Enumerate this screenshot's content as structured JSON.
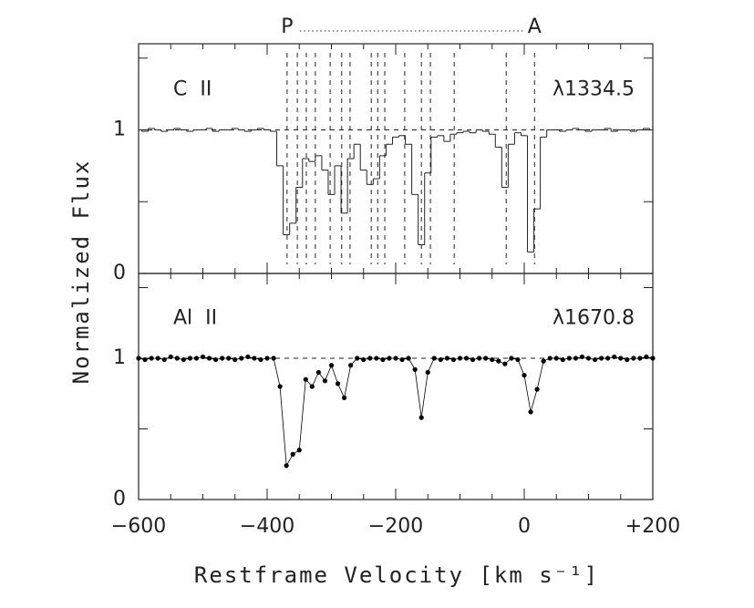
{
  "figure": {
    "xlabel": "Restframe Velocity [km s⁻¹]",
    "ylabel": "Normalized Flux",
    "start_label": "P",
    "end_label": "A",
    "xlim": [
      -600,
      200
    ],
    "xticks": [
      {
        "value": -600,
        "label": "−600"
      },
      {
        "value": -400,
        "label": "−400"
      },
      {
        "value": -200,
        "label": "−200"
      },
      0,
      {
        "value": 200,
        "label": "+200"
      }
    ],
    "xminorticks": [
      -550,
      -500,
      -450,
      -350,
      -300,
      -250,
      -150,
      -100,
      -50,
      50,
      100,
      150
    ]
  },
  "chart_data": [
    {
      "type": "step",
      "ion": "C  II",
      "line": "λ1334.5",
      "color": "#444444",
      "ylim": [
        0,
        1.6
      ],
      "yticks": [
        0,
        1
      ],
      "yminorticks": [
        0.5,
        1.5
      ],
      "continuum": 1,
      "components": [
        -369,
        -353,
        -339,
        -325,
        -302,
        -284,
        -271,
        -238,
        -228,
        -217,
        -186,
        -160,
        -146,
        -109,
        -28,
        16
      ],
      "x": [
        -600,
        -590,
        -580,
        -570,
        -560,
        -550,
        -540,
        -530,
        -520,
        -510,
        -500,
        -490,
        -480,
        -470,
        -460,
        -450,
        -440,
        -430,
        -420,
        -410,
        -400,
        -390,
        -380,
        -370,
        -360,
        -350,
        -340,
        -330,
        -320,
        -310,
        -300,
        -290,
        -280,
        -270,
        -260,
        -250,
        -240,
        -230,
        -220,
        -210,
        -200,
        -190,
        -180,
        -170,
        -160,
        -150,
        -140,
        -130,
        -120,
        -110,
        -100,
        -90,
        -80,
        -70,
        -60,
        -50,
        -40,
        -30,
        -20,
        -10,
        0,
        10,
        20,
        30,
        40,
        50,
        60,
        70,
        80,
        90,
        100,
        110,
        120,
        130,
        140,
        150,
        160,
        170,
        180,
        190,
        200
      ],
      "values": [
        1.0,
        0.99,
        1.01,
        1.0,
        0.99,
        1.0,
        1.01,
        1.0,
        0.99,
        1.0,
        1.0,
        1.01,
        0.99,
        1.0,
        1.0,
        1.01,
        1.0,
        0.99,
        1.0,
        1.01,
        1.0,
        0.99,
        0.75,
        0.27,
        0.35,
        0.6,
        0.8,
        0.78,
        0.82,
        0.72,
        0.55,
        0.75,
        0.42,
        0.8,
        0.9,
        0.72,
        0.62,
        0.66,
        0.82,
        0.9,
        0.95,
        0.96,
        0.9,
        0.55,
        0.2,
        0.7,
        0.95,
        0.96,
        0.92,
        0.97,
        0.98,
        0.99,
        0.98,
        1.0,
        0.99,
        0.97,
        0.88,
        0.6,
        0.9,
        0.98,
        0.96,
        0.15,
        0.45,
        0.95,
        1.0,
        1.0,
        0.99,
        1.0,
        1.01,
        1.0,
        0.99,
        1.0,
        1.0,
        1.01,
        0.99,
        1.0,
        1.0,
        0.99,
        1.0,
        1.01,
        1.0
      ]
    },
    {
      "type": "line",
      "ion": "Al  II",
      "line": "λ1670.8",
      "color": "#000000",
      "ylim": [
        0,
        1.6
      ],
      "yticks": [
        0,
        1
      ],
      "yminorticks": [
        0.5,
        1.5
      ],
      "continuum": 1,
      "x": [
        -600,
        -590,
        -580,
        -570,
        -560,
        -550,
        -540,
        -530,
        -520,
        -510,
        -500,
        -490,
        -480,
        -470,
        -460,
        -450,
        -440,
        -430,
        -420,
        -410,
        -400,
        -390,
        -380,
        -370,
        -360,
        -350,
        -340,
        -330,
        -320,
        -310,
        -300,
        -290,
        -280,
        -270,
        -260,
        -250,
        -240,
        -230,
        -220,
        -210,
        -200,
        -190,
        -180,
        -170,
        -160,
        -150,
        -140,
        -130,
        -120,
        -110,
        -100,
        -90,
        -80,
        -70,
        -60,
        -50,
        -40,
        -30,
        -20,
        -10,
        0,
        10,
        20,
        30,
        40,
        50,
        60,
        70,
        80,
        90,
        100,
        110,
        120,
        130,
        140,
        150,
        160,
        170,
        180,
        190,
        200
      ],
      "values": [
        1.0,
        0.99,
        1.0,
        1.0,
        0.99,
        1.01,
        1.0,
        0.99,
        1.0,
        1.0,
        1.01,
        1.0,
        0.99,
        1.0,
        1.0,
        0.99,
        1.0,
        1.01,
        1.0,
        0.99,
        1.0,
        1.0,
        0.8,
        0.24,
        0.32,
        0.35,
        0.85,
        0.8,
        0.9,
        0.84,
        0.95,
        0.82,
        0.72,
        0.95,
        1.0,
        0.99,
        1.0,
        1.0,
        0.99,
        1.0,
        1.0,
        0.99,
        1.0,
        0.92,
        0.58,
        0.9,
        1.0,
        0.99,
        1.0,
        0.99,
        1.0,
        1.0,
        0.99,
        1.0,
        1.0,
        0.99,
        0.98,
        0.96,
        1.0,
        0.99,
        0.88,
        0.62,
        0.78,
        0.98,
        1.0,
        1.0,
        0.99,
        1.0,
        1.0,
        1.01,
        1.0,
        0.99,
        1.0,
        1.0,
        1.01,
        1.0,
        0.99,
        1.0,
        1.0,
        1.01,
        1.0
      ]
    }
  ]
}
